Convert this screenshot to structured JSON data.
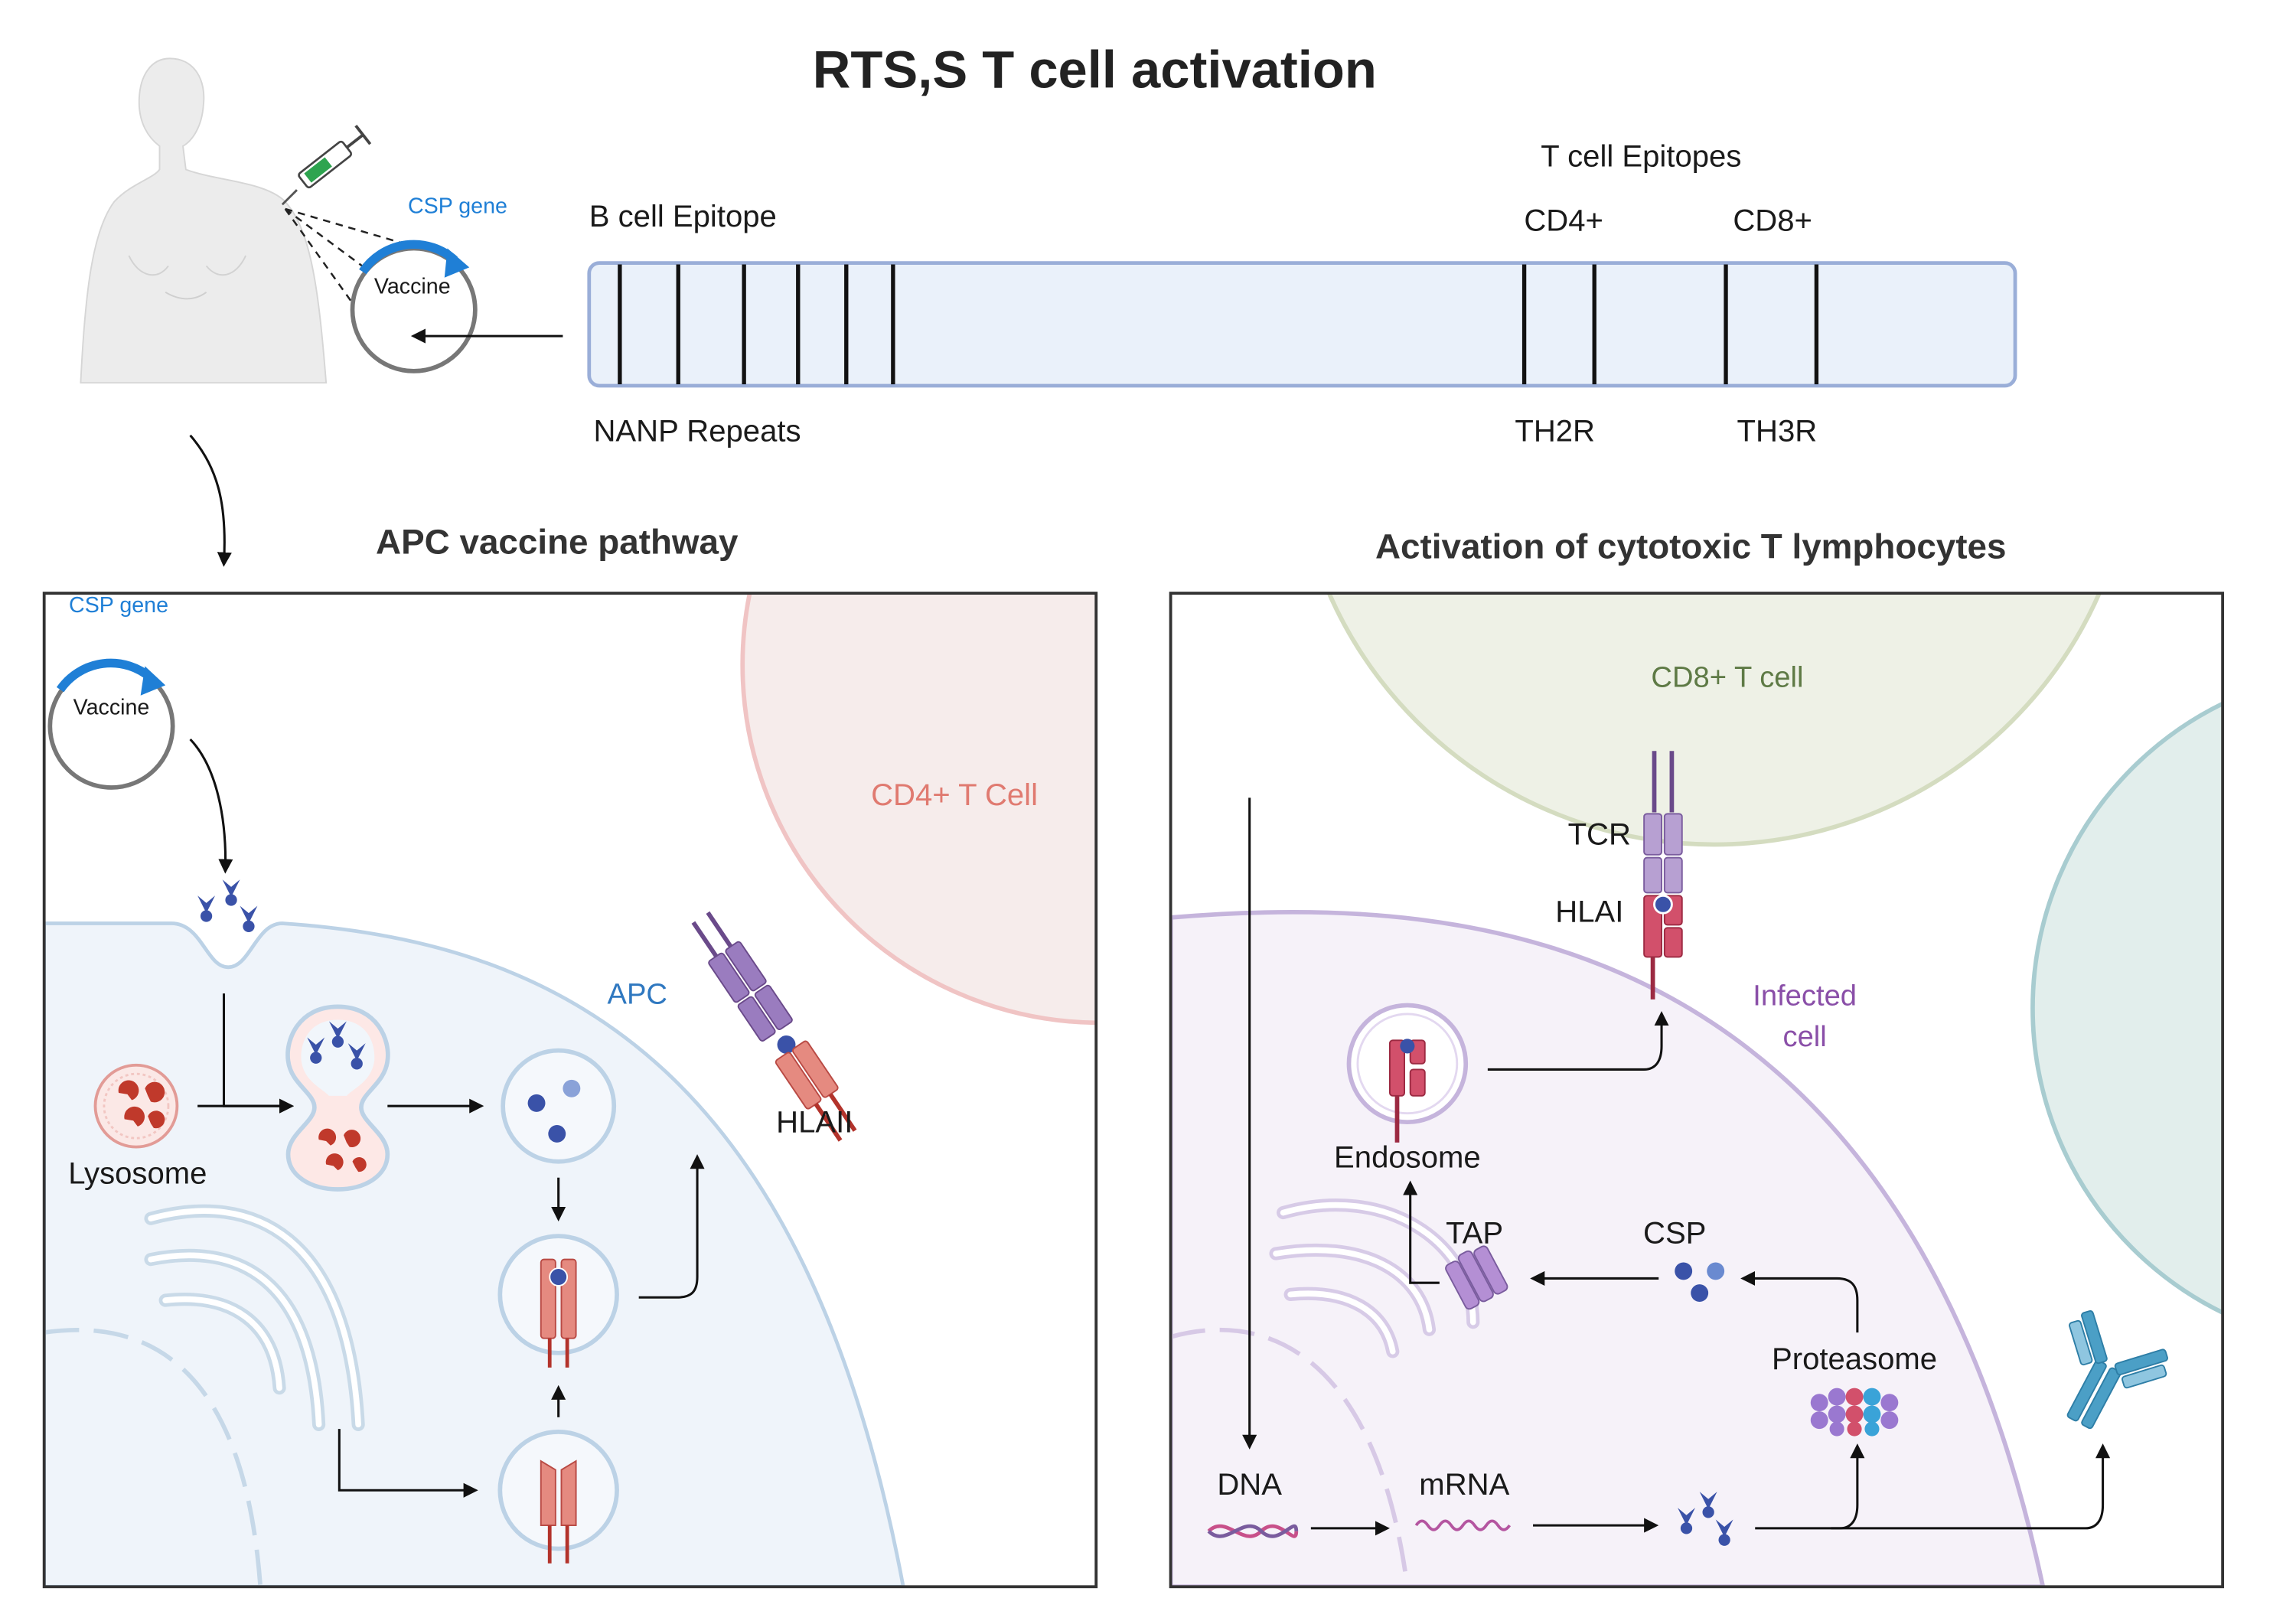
{
  "title": "RTS,S T cell activation",
  "vaccine_intro": {
    "csp_gene": "CSP gene",
    "vaccine": "Vaccine"
  },
  "csp_construct": {
    "b_cell_epitope": "B cell Epitope",
    "t_cell_epitopes": "T cell Epitopes",
    "cd4": "CD4+",
    "cd8": "CD8+",
    "nanp_repeats": "NANP Repeats",
    "th2r": "TH2R",
    "th3r": "TH3R"
  },
  "apc_panel": {
    "heading": "APC vaccine pathway",
    "csp_gene": "CSP gene",
    "vaccine": "Vaccine",
    "cd4_t_cell": "CD4+ T Cell",
    "apc": "APC",
    "lysosome": "Lysosome",
    "hlaii": "HLAII"
  },
  "ctl_panel": {
    "heading": "Activation of cytotoxic T lymphocytes",
    "cd8_t_cell": "CD8+ T cell",
    "tcr": "TCR",
    "hlai": "HLAI",
    "infected_cell_line1": "Infected",
    "infected_cell_line2": "cell",
    "endosome": "Endosome",
    "tap": "TAP",
    "csp": "CSP",
    "proteasome": "Proteasome",
    "dna": "DNA",
    "mrna": "mRNA"
  },
  "colors": {
    "vaccine_blue": "#1f7fd6",
    "cd4_cell": "#e07a70",
    "cd8_cell": "#5e7a45",
    "apc_label": "#2f78c0",
    "infected_label": "#8a4fa8",
    "receptor_red": "#d9635a",
    "receptor_purple": "#8a6aa8",
    "construct_fill": "#eaf1fa"
  }
}
